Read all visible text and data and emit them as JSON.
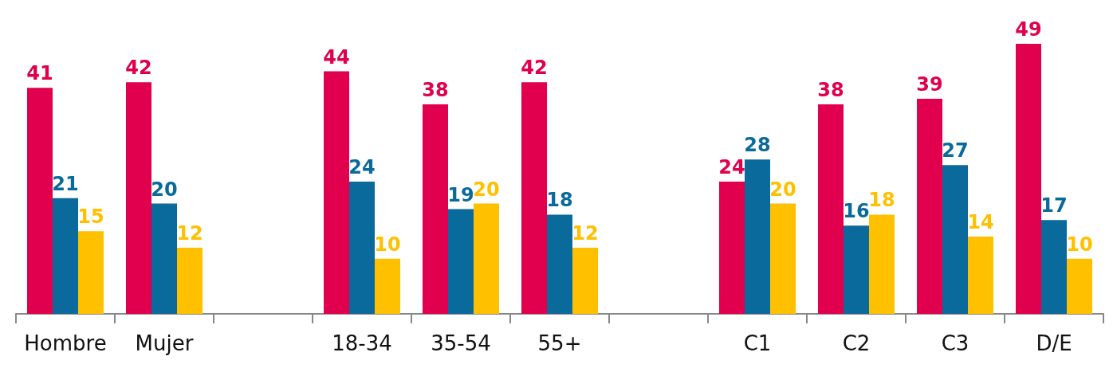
{
  "chart_data": {
    "type": "bar",
    "categories": [
      "Hombre",
      "Mujer",
      null,
      "18-34",
      "35-54",
      "55+",
      null,
      "C1",
      "C2",
      "C3",
      "D/E"
    ],
    "series": [
      {
        "color": "#e0004d",
        "values": [
          41,
          42,
          null,
          44,
          38,
          42,
          null,
          24,
          38,
          39,
          49
        ]
      },
      {
        "color": "#0b6a9c",
        "values": [
          21,
          20,
          null,
          24,
          19,
          18,
          null,
          28,
          16,
          27,
          17
        ]
      },
      {
        "color": "#ffc000",
        "values": [
          15,
          12,
          null,
          10,
          20,
          12,
          null,
          20,
          18,
          14,
          10
        ]
      }
    ],
    "data_labels": true
  }
}
